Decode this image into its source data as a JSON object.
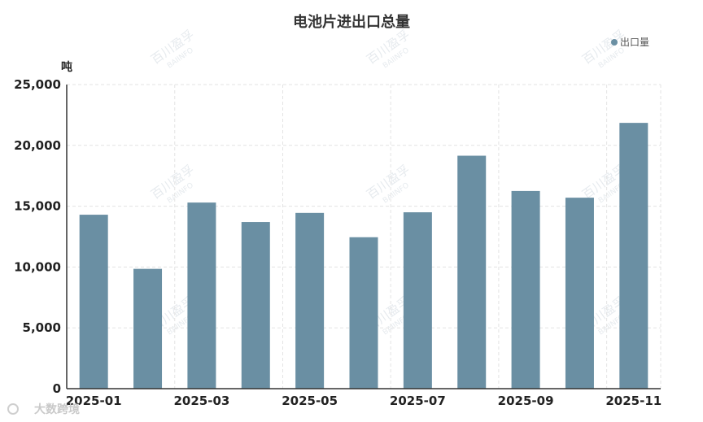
{
  "chart_data": {
    "type": "bar",
    "title": "电池片进出口总量",
    "ylabel": "吨",
    "xlabel": "",
    "categories": [
      "2025-01",
      "2025-02",
      "2025-03",
      "2025-04",
      "2025-05",
      "2025-06",
      "2025-07",
      "2025-08",
      "2025-09",
      "2025-10",
      "2025-11"
    ],
    "x_tick_labels": [
      "2025-01",
      "2025-03",
      "2025-05",
      "2025-07",
      "2025-09",
      "2025-11"
    ],
    "y_tick_labels": [
      "0",
      "5,000",
      "10,000",
      "15,000",
      "20,000",
      "25,000"
    ],
    "ylim": [
      0,
      25000
    ],
    "series": [
      {
        "name": "出口量",
        "values": [
          14300,
          9850,
          15300,
          13700,
          14450,
          12450,
          14500,
          19150,
          16250,
          15700,
          21850
        ]
      }
    ],
    "legend_position": "top-right",
    "grid": true,
    "colors": {
      "bar": "#6a8fa3",
      "grid": "#e3e3e3",
      "axis": "#333333"
    }
  },
  "watermark": {
    "text": "百川盈孚",
    "subtext": "BAIINFO"
  },
  "brand": {
    "text": "大数跨境"
  }
}
